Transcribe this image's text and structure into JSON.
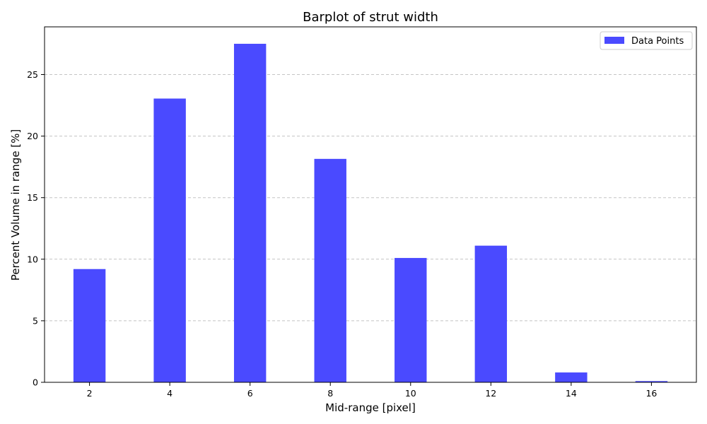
{
  "chart_data": {
    "type": "bar",
    "title": "Barplot of strut width",
    "xlabel": "Mid-range [pixel]",
    "ylabel": "Percent Volume in range [%]",
    "x": [
      2,
      4,
      6,
      8,
      10,
      12,
      14,
      16
    ],
    "bar_width": 0.8,
    "series": [
      {
        "name": "Data Points",
        "values": [
          9.2,
          23.05,
          27.5,
          18.15,
          10.1,
          11.1,
          0.8,
          0.1
        ],
        "color": "#4a4aff"
      }
    ],
    "xticks": [
      2,
      4,
      6,
      8,
      10,
      12,
      14,
      16
    ],
    "yticks": [
      0,
      5,
      10,
      15,
      20,
      25
    ],
    "xlim": [
      0.88,
      17.12
    ],
    "ylim": [
      0,
      28.875
    ],
    "grid": {
      "axis": "y",
      "style": "dashed",
      "color": "#c4c4c4"
    },
    "legend": {
      "position": "top-right"
    }
  }
}
